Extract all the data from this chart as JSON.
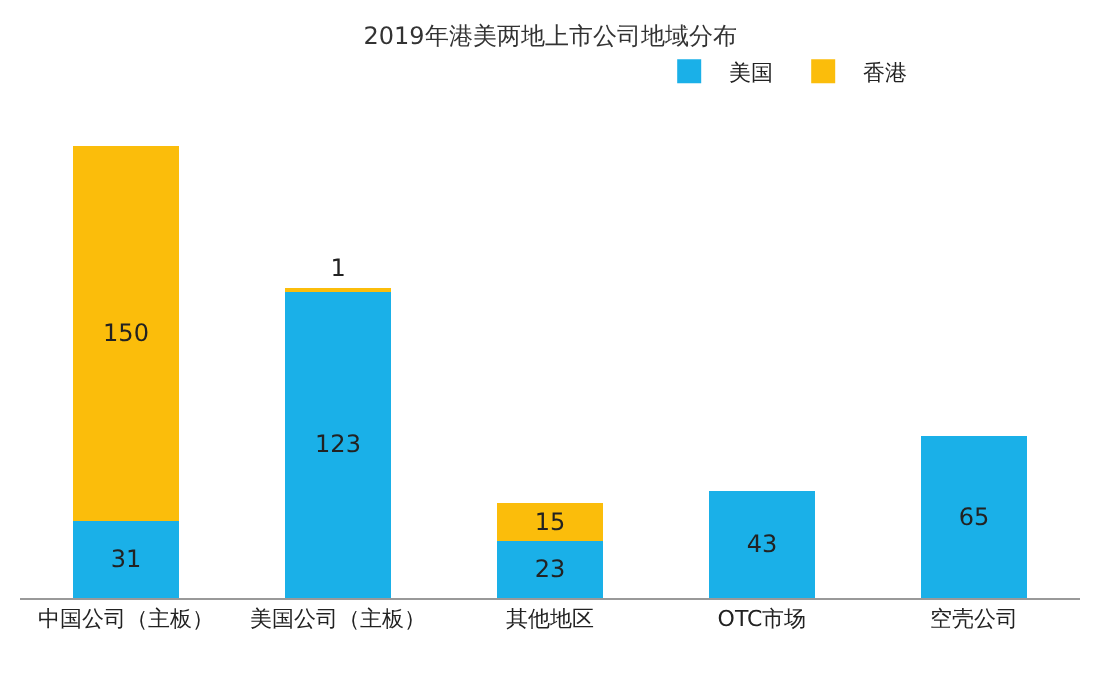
{
  "chart_data": {
    "type": "bar",
    "title": "2019年港美两地上市公司地域分布",
    "categories": [
      "中国公司（主板）",
      "美国公司（主板）",
      "其他地区",
      "OTC市场",
      "空壳公司"
    ],
    "stacked": true,
    "data_labels": true,
    "legend": "top right",
    "grid": false,
    "series": [
      {
        "name": "美国",
        "color": "#1ab0e8",
        "values": [
          31,
          123,
          23,
          43,
          65
        ]
      },
      {
        "name": "香港",
        "color": "#fbbd0b",
        "values": [
          150,
          1,
          15,
          null,
          null
        ]
      }
    ]
  }
}
